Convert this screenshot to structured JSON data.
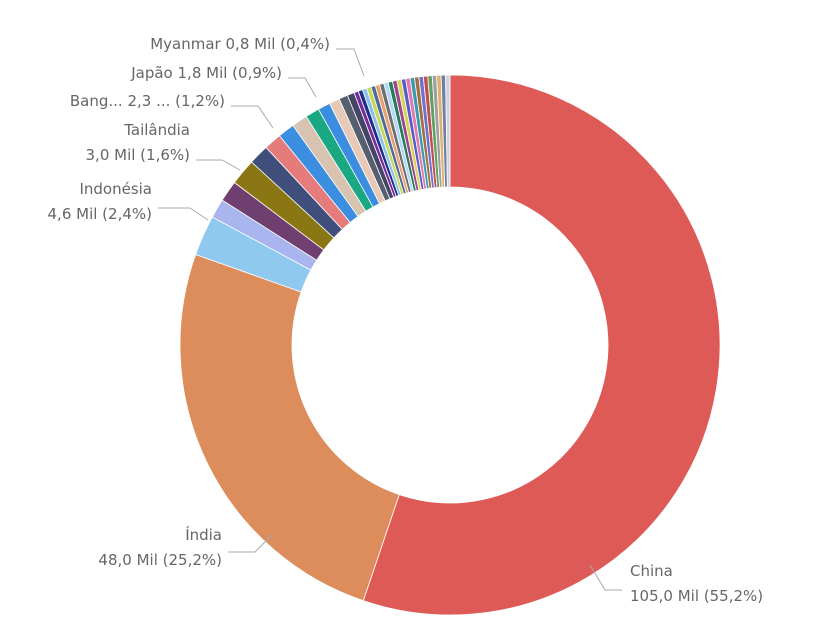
{
  "chart_data": {
    "type": "donut",
    "categories": [
      "China",
      "Índia",
      "Indonésia",
      null,
      null,
      "Tailândia",
      "Bang...",
      null,
      null,
      "Japão",
      null,
      null,
      null,
      null,
      "Myanmar",
      null,
      null,
      null,
      null,
      null,
      null,
      null,
      null,
      null,
      null,
      null,
      null,
      null,
      null,
      null,
      null,
      null,
      null,
      null,
      null,
      null,
      null
    ],
    "values": [
      105.0,
      48.0,
      4.6,
      2.2,
      2.4,
      3.0,
      2.3,
      2.0,
      1.9,
      1.8,
      1.6,
      1.4,
      1.2,
      1.0,
      0.8,
      0.5,
      0.5,
      0.5,
      0.5,
      0.5,
      0.5,
      0.5,
      0.5,
      0.5,
      0.5,
      0.5,
      0.5,
      0.5,
      0.5,
      0.5,
      0.5,
      0.5,
      0.5,
      0.5,
      0.5,
      0.5,
      0.5
    ],
    "value_labels": [
      "105,0 Mil (55,2%)",
      "48,0 Mil (25,2%)",
      "4,6 Mil (2,4%)",
      null,
      null,
      "3,0 Mil (1,6%)",
      "2,3 ... (1,2%)",
      null,
      null,
      "1,8 Mil (0,9%)",
      null,
      null,
      null,
      null,
      "0,8 Mil (0,4%)",
      null,
      null,
      null,
      null,
      null,
      null,
      null,
      null,
      null,
      null,
      null,
      null,
      null,
      null,
      null,
      null,
      null,
      null,
      null,
      null,
      null,
      null
    ],
    "colors": [
      "#dd5a56",
      "#dc8d5b",
      "#8fc9f0",
      "#a8b5ee",
      "#6e3f6f",
      "#8a7612",
      "#3f4e7a",
      "#e67b7b",
      "#3c8fe0",
      "#d8c3b0",
      "#1aa882",
      "#3b8de0",
      "#e8c9b8",
      "#555f6e",
      "#444466",
      "#7b2a9a",
      "#1c2f8a",
      "#8dc0e8",
      "#c4d95a",
      "#4e6a9a",
      "#e8a070",
      "#6e6e6e",
      "#b0d8f8",
      "#2b7a5a",
      "#9a4a8a",
      "#d9d15a",
      "#5a5ac8",
      "#e07ab0",
      "#3a9ab0",
      "#a07040",
      "#7070d0",
      "#c05050",
      "#60a060",
      "#a0a0a0",
      "#e0b070",
      "#7080a0",
      "#d0d0e0"
    ]
  }
}
